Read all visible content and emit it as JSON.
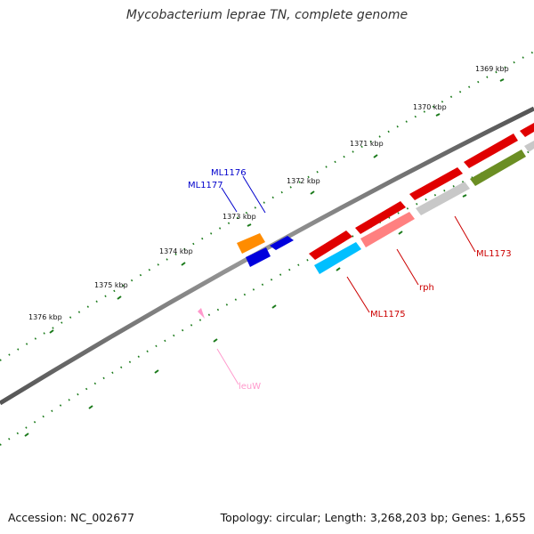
{
  "title": "Mycobacterium leprae TN, complete genome",
  "footer": {
    "accession": "Accession: NC_002677",
    "summary": "Topology: circular; Length: 3,268,203 bp; Genes: 1,655"
  },
  "ruler_labels": [
    "1369 kbp",
    "1370 kbp",
    "1371 kbp",
    "1372 kbp",
    "1373 kbp",
    "1374 kbp",
    "1375 kbp",
    "1376 kbp"
  ],
  "gene_labels": {
    "ml1176": "ML1176",
    "ml1177": "ML1177",
    "ml1173": "ML1173",
    "rph": "rph",
    "ml1175": "ML1175",
    "leuw": "leuW"
  },
  "colors": {
    "backbone": "#808080",
    "tick": "#1a7a1a",
    "forward_label": "#0000cc",
    "reverse_label": "#cc0000",
    "trna_label": "#ff99cc",
    "gene_red": "#e00000",
    "gene_pink": "#ff8080",
    "gene_grey": "#c8c8c8",
    "gene_olive": "#6b8e23",
    "gene_blue": "#0000dd",
    "gene_orange": "#ff8c00",
    "gene_cyan": "#00bfff"
  }
}
